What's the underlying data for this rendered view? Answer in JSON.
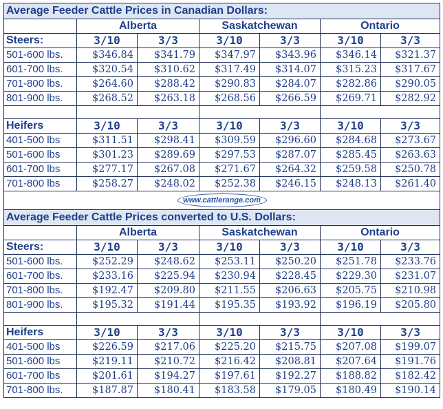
{
  "cad": {
    "title": "Average Feeder Cattle Prices in Canadian Dollars:",
    "provinces": [
      "Alberta",
      "Saskatchewan",
      "Ontario"
    ],
    "dates": [
      "3/10",
      "3/3"
    ],
    "steers": {
      "label": "Steers:",
      "rows": [
        {
          "weight": "501-600 lbs.",
          "values": [
            "$346.84",
            "$341.79",
            "$347.97",
            "$343.96",
            "$346.14",
            "$321.37"
          ]
        },
        {
          "weight": "601-700 lbs.",
          "values": [
            "$320.54",
            "$310.62",
            "$317.49",
            "$314.07",
            "$315.23",
            "$317.67"
          ]
        },
        {
          "weight": "701-800 lbs.",
          "values": [
            "$264.60",
            "$288.42",
            "$290.83",
            "$284.07",
            "$282.86",
            "$290.05"
          ]
        },
        {
          "weight": "801-900 lbs.",
          "values": [
            "$268.52",
            "$263.18",
            "$268.56",
            "$266.59",
            "$269.71",
            "$282.92"
          ]
        }
      ]
    },
    "heifers": {
      "label": "Heifers",
      "rows": [
        {
          "weight": "401-500 lbs",
          "values": [
            "$311.51",
            "$298.41",
            "$309.59",
            "$296.60",
            "$284.68",
            "$273.67"
          ]
        },
        {
          "weight": "501-600 lbs",
          "values": [
            "$301.23",
            "$289.69",
            "$297.53",
            "$287.07",
            "$285.45",
            "$263.63"
          ]
        },
        {
          "weight": "601-700 lbs",
          "values": [
            "$277.17",
            "$267.08",
            "$271.67",
            "$264.32",
            "$259.58",
            "$250.78"
          ]
        },
        {
          "weight": "701-800 lbs",
          "values": [
            "$258.27",
            "$248.02",
            "$252.38",
            "$246.15",
            "$248.13",
            "$261.40"
          ]
        }
      ]
    }
  },
  "logo_text": "www.cattlerange.com",
  "usd": {
    "title": "Average Feeder Cattle Prices converted to U.S. Dollars:",
    "provinces": [
      "Alberta",
      "Saskatchewan",
      "Ontario"
    ],
    "dates": [
      "3/10",
      "3/3"
    ],
    "steers": {
      "label": "Steers:",
      "rows": [
        {
          "weight": "501-600 lbs.",
          "values": [
            "$252.29",
            "$248.62",
            "$253.11",
            "$250.20",
            "$251.78",
            "$233.76"
          ]
        },
        {
          "weight": "601-700 lbs.",
          "values": [
            "$233.16",
            "$225.94",
            "$230.94",
            "$228.45",
            "$229.30",
            "$231.07"
          ]
        },
        {
          "weight": "701-800 lbs.",
          "values": [
            "$192.47",
            "$209.80",
            "$211.55",
            "$206.63",
            "$205.75",
            "$210.98"
          ]
        },
        {
          "weight": "801-900 lbs.",
          "values": [
            "$195.32",
            "$191.44",
            "$195.35",
            "$193.92",
            "$196.19",
            "$205.80"
          ]
        }
      ]
    },
    "heifers": {
      "label": "Heifers",
      "rows": [
        {
          "weight": "401-500 lbs",
          "values": [
            "$226.59",
            "$217.06",
            "$225.20",
            "$215.75",
            "$207.08",
            "$199.07"
          ]
        },
        {
          "weight": "501-600 lbs",
          "values": [
            "$219.11",
            "$210.72",
            "$216.42",
            "$208.81",
            "$207.64",
            "$191.76"
          ]
        },
        {
          "weight": "601-700 lbs",
          "values": [
            "$201.61",
            "$194.27",
            "$197.61",
            "$192.27",
            "$188.82",
            "$182.42"
          ]
        },
        {
          "weight": "701-800 lbs.",
          "values": [
            "$187.87",
            "$180.41",
            "$183.58",
            "$179.05",
            "$180.49",
            "$190.14"
          ]
        }
      ]
    }
  }
}
